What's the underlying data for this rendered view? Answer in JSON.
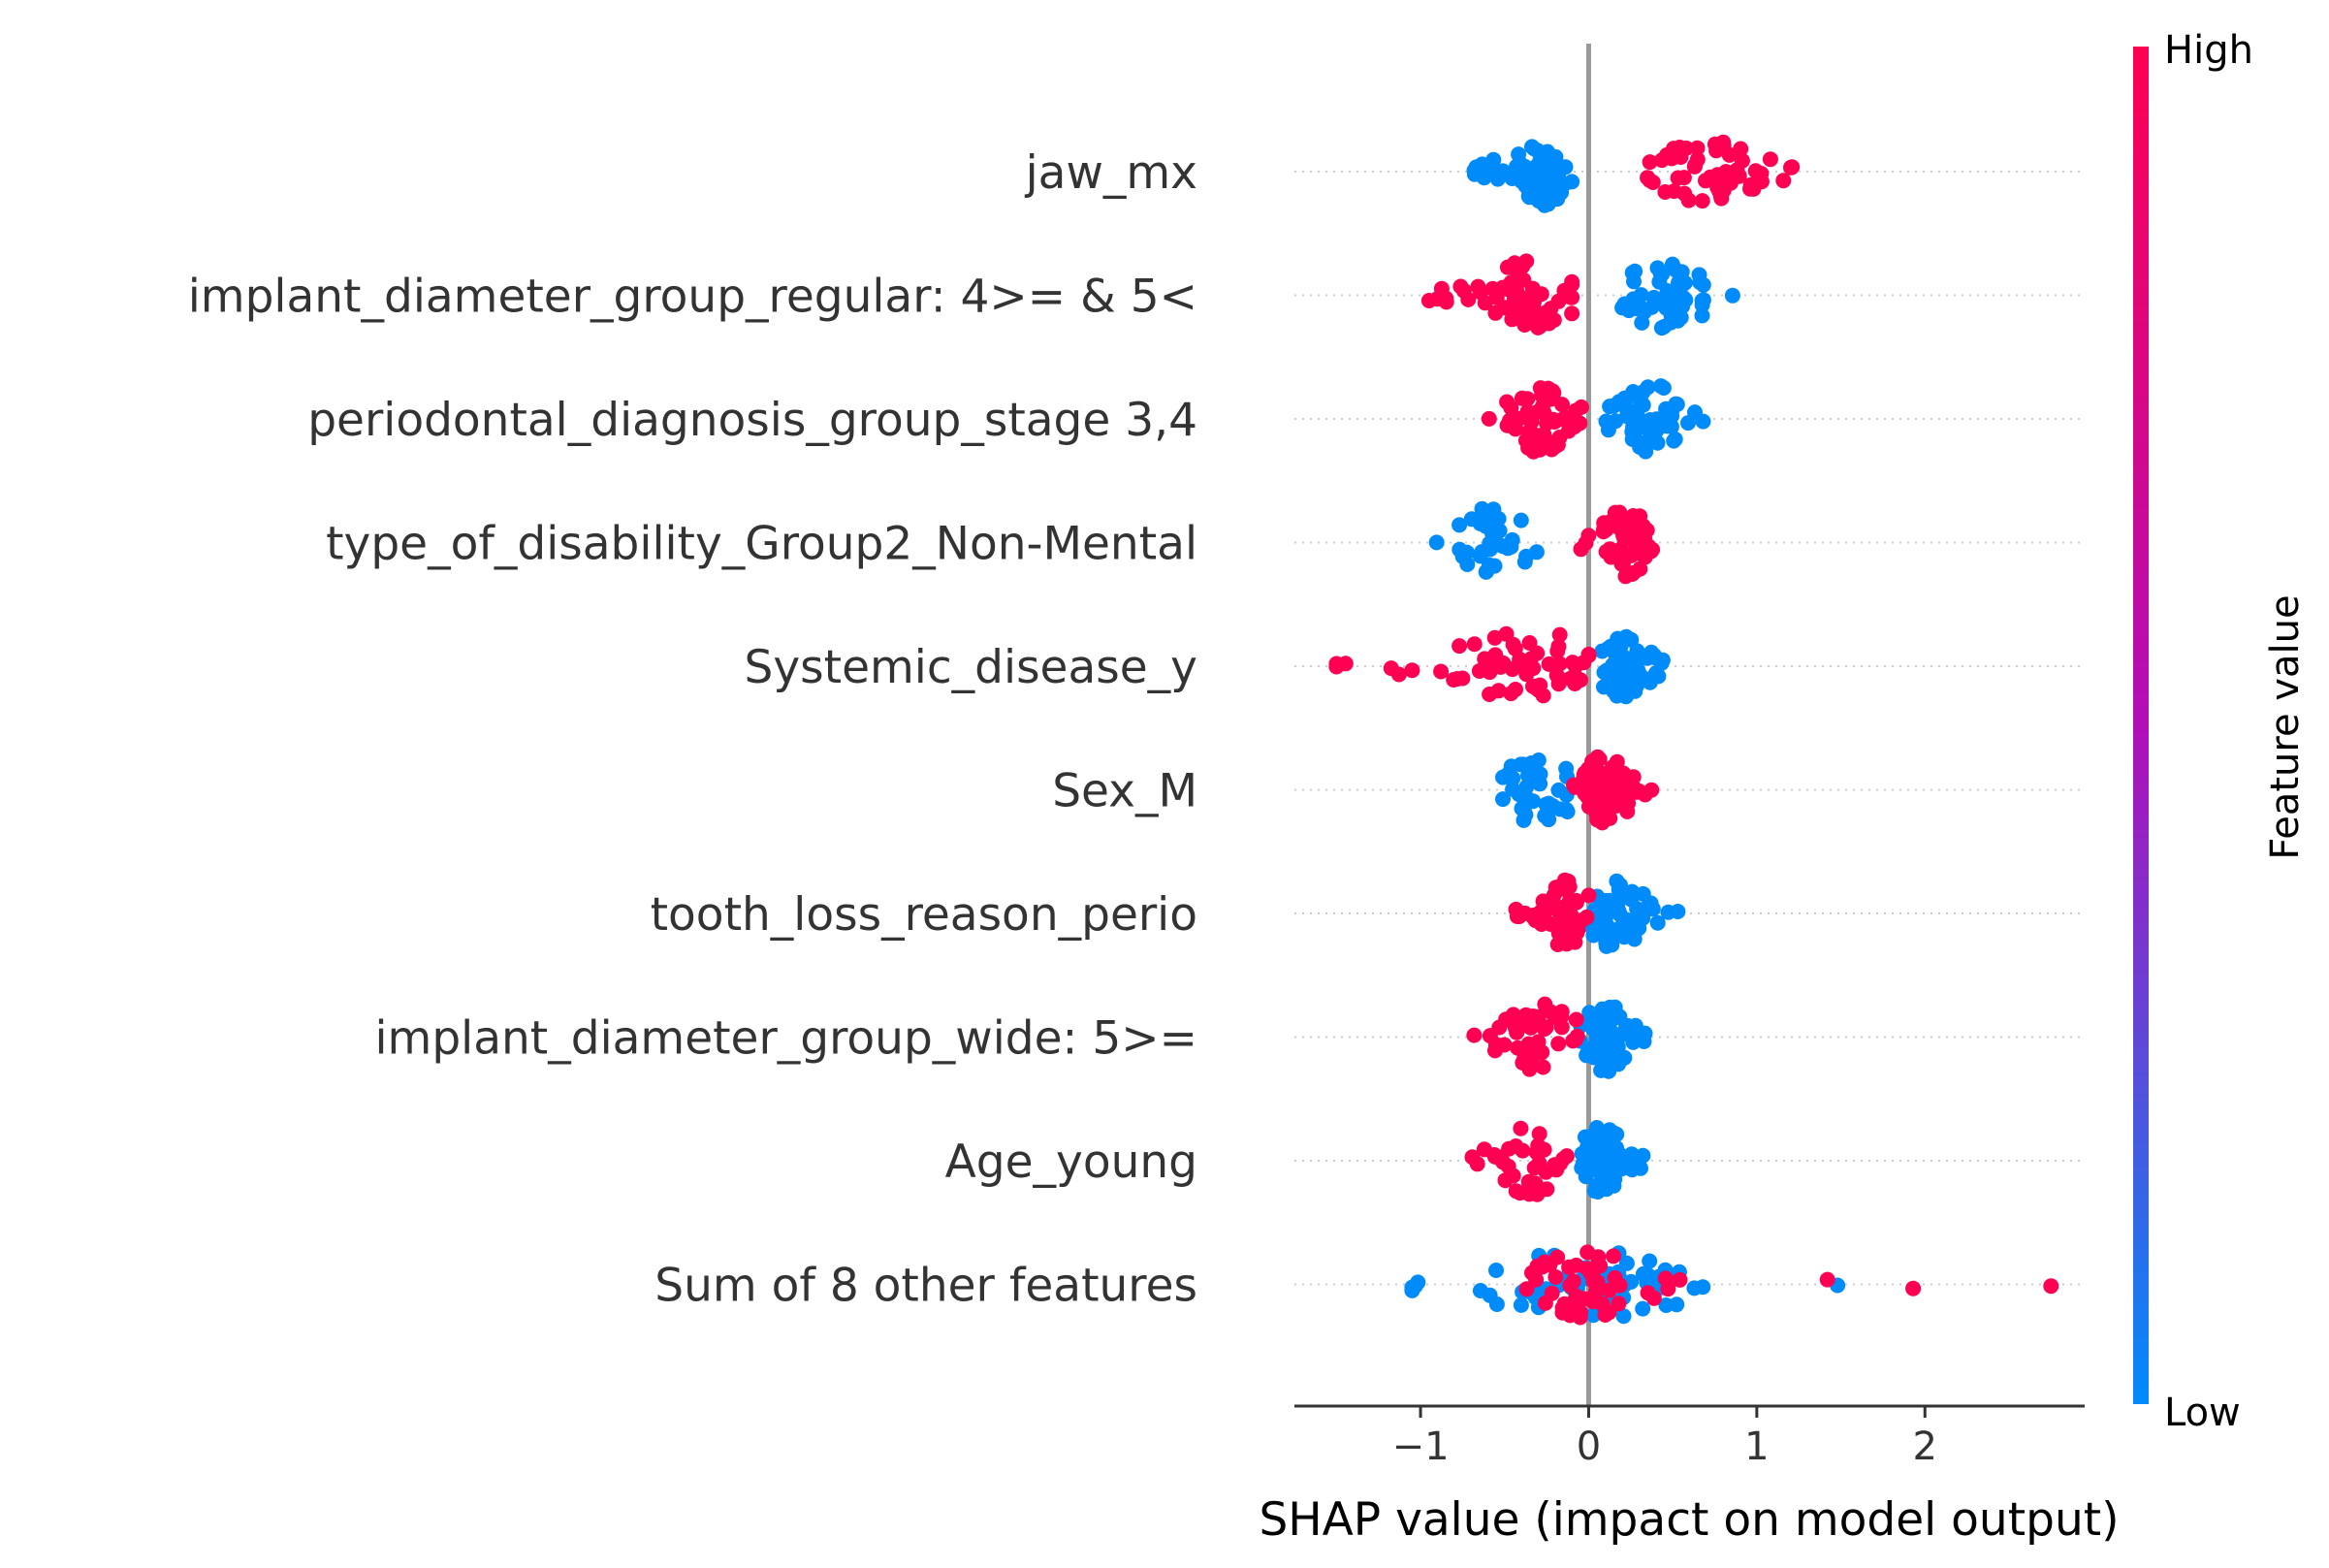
{
  "chart_data": {
    "type": "scatter",
    "subtype": "shap-beeswarm",
    "xlabel": "SHAP value (impact on model output)",
    "xlim": [
      -1.75,
      2.95
    ],
    "xticks": [
      {
        "value": -1,
        "label": "−1"
      },
      {
        "value": 0,
        "label": "0"
      },
      {
        "value": 1,
        "label": "1"
      },
      {
        "value": 2,
        "label": "2"
      }
    ],
    "zero_line": true,
    "grid": false,
    "colorbar": {
      "title": "Feature value",
      "high_label": "High",
      "low_label": "Low",
      "high_color": "#ff0052",
      "mid_color": "#b10eb8",
      "low_color": "#008bfb"
    },
    "features": [
      {
        "name": "jaw_mx",
        "low": {
          "min": -0.7,
          "max": -0.1,
          "center": -0.3,
          "count": 60
        },
        "high": {
          "min": 0.35,
          "max": 1.25,
          "center": 0.7,
          "count": 55
        }
      },
      {
        "name": "implant_diameter_group_regular: 4>= & 5<",
        "high": {
          "min": -0.95,
          "max": -0.1,
          "center": -0.35,
          "count": 55
        },
        "low": {
          "min": 0.2,
          "max": 0.95,
          "center": 0.45,
          "count": 55
        }
      },
      {
        "name": "periodontal_diagnosis_group_stage 3,4",
        "high": {
          "min": -0.6,
          "max": -0.02,
          "center": -0.3,
          "count": 55
        },
        "low": {
          "min": 0.1,
          "max": 0.7,
          "center": 0.38,
          "count": 50
        }
      },
      {
        "name": "type_of_disability_Group2_Non-Mental",
        "low": {
          "min": -1.05,
          "max": -0.3,
          "center": -0.6,
          "count": 35
        },
        "high": {
          "min": -0.05,
          "max": 0.38,
          "center": 0.22,
          "count": 60
        }
      },
      {
        "name": "Systemic_disease_y",
        "high": {
          "min": -1.5,
          "max": 0.0,
          "center": -0.35,
          "count": 55,
          "outliers": [
            -1.5,
            -1.05,
            -0.75
          ]
        },
        "low": {
          "min": 0.0,
          "max": 0.45,
          "center": 0.22,
          "count": 65
        }
      },
      {
        "name": "Sex_M",
        "low": {
          "min": -0.7,
          "max": -0.05,
          "center": -0.3,
          "count": 35
        },
        "high": {
          "min": -0.1,
          "max": 0.38,
          "center": 0.1,
          "count": 70
        }
      },
      {
        "name": "tooth_loss_reason_perio",
        "high": {
          "min": -0.45,
          "max": 0.0,
          "center": -0.12,
          "count": 55
        },
        "low": {
          "min": 0.0,
          "max": 0.55,
          "center": 0.15,
          "count": 55
        }
      },
      {
        "name": "implant_diameter_group_wide: 5>=",
        "high": {
          "min": -0.7,
          "max": -0.05,
          "center": -0.3,
          "count": 45
        },
        "low": {
          "min": -0.05,
          "max": 0.35,
          "center": 0.1,
          "count": 65
        }
      },
      {
        "name": "Age_young",
        "high": {
          "min": -0.7,
          "max": -0.1,
          "center": -0.35,
          "count": 35
        },
        "low": {
          "min": -0.05,
          "max": 0.35,
          "center": 0.08,
          "count": 65
        }
      },
      {
        "name": "Sum of 8 other features",
        "low": {
          "min": -1.05,
          "max": 0.75,
          "center": 0.0,
          "count": 55,
          "outliers": [
            -1.05,
            -1.05,
            1.48
          ]
        },
        "high": {
          "min": -0.45,
          "max": 0.6,
          "center": 0.0,
          "count": 50,
          "outliers": [
            1.42,
            1.93,
            2.75
          ]
        }
      }
    ]
  }
}
